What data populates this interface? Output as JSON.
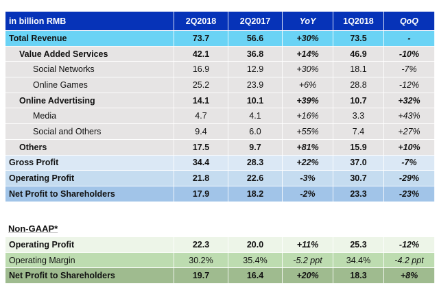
{
  "header": {
    "unit_label": "in billion RMB",
    "columns": [
      "2Q2018",
      "2Q2017",
      "YoY",
      "1Q2018",
      "QoQ"
    ]
  },
  "rows": [
    {
      "label": "Total Revenue",
      "values": [
        "73.7",
        "56.6",
        "+30%",
        "73.5",
        "-"
      ]
    },
    {
      "label": "Value Added Services",
      "values": [
        "42.1",
        "36.8",
        "+14%",
        "46.9",
        "-10%"
      ]
    },
    {
      "label": "Social Networks",
      "values": [
        "16.9",
        "12.9",
        "+30%",
        "18.1",
        "-7%"
      ]
    },
    {
      "label": "Online Games",
      "values": [
        "25.2",
        "23.9",
        "+6%",
        "28.8",
        "-12%"
      ]
    },
    {
      "label": "Online Advertising",
      "values": [
        "14.1",
        "10.1",
        "+39%",
        "10.7",
        "+32%"
      ]
    },
    {
      "label": "Media",
      "values": [
        "4.7",
        "4.1",
        "+16%",
        "3.3",
        "+43%"
      ]
    },
    {
      "label": "Social and Others",
      "values": [
        "9.4",
        "6.0",
        "+55%",
        "7.4",
        "+27%"
      ]
    },
    {
      "label": "Others",
      "values": [
        "17.5",
        "9.7",
        "+81%",
        "15.9",
        "+10%"
      ]
    },
    {
      "label": "Gross Profit",
      "values": [
        "34.4",
        "28.3",
        "+22%",
        "37.0",
        "-7%"
      ]
    },
    {
      "label": "Operating Profit",
      "values": [
        "21.8",
        "22.6",
        "-3%",
        "30.7",
        "-29%"
      ]
    },
    {
      "label": "Net Profit to Shareholders",
      "values": [
        "17.9",
        "18.2",
        "-2%",
        "23.3",
        "-23%"
      ]
    }
  ],
  "non_gaap": {
    "title": "Non-GAAP*",
    "rows": [
      {
        "label": "Operating Profit",
        "values": [
          "22.3",
          "20.0",
          "+11%",
          "25.3",
          "-12%"
        ]
      },
      {
        "label": "Operating Margin",
        "values": [
          "30.2%",
          "35.4%",
          "-5.2 ppt",
          "34.4%",
          "-4.2 ppt"
        ]
      },
      {
        "label": "Net Profit to Shareholders",
        "values": [
          "19.7",
          "16.4",
          "+20%",
          "18.3",
          "+8%"
        ]
      }
    ]
  },
  "colors": {
    "header_bg": "#0633b8",
    "total_revenue_bg": "#6ad3f5",
    "revenue_detail_bg": "#e6e4e4",
    "gross_profit_bg": "#dbe8f5",
    "operating_profit_bg": "#c5dcf0",
    "net_profit_bg": "#a1c4e8",
    "nongaap_row1_bg": "#edf5e8",
    "nongaap_row2_bg": "#bddcb0",
    "nongaap_row3_bg": "#9fbb8f"
  }
}
